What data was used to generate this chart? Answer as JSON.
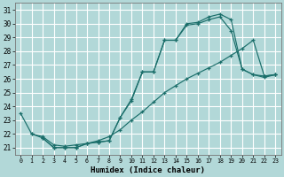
{
  "xlabel": "Humidex (Indice chaleur)",
  "bg_color": "#b2d8d8",
  "grid_color": "#ffffff",
  "line_color": "#1a6e6a",
  "xlim": [
    -0.5,
    23.5
  ],
  "ylim": [
    20.5,
    31.5
  ],
  "xticks": [
    0,
    1,
    2,
    3,
    4,
    5,
    6,
    7,
    8,
    9,
    10,
    11,
    12,
    13,
    14,
    15,
    16,
    17,
    18,
    19,
    20,
    21,
    22,
    23
  ],
  "yticks": [
    21,
    22,
    23,
    24,
    25,
    26,
    27,
    28,
    29,
    30,
    31
  ],
  "s1_x": [
    0,
    1,
    2,
    3,
    4,
    5,
    6,
    7,
    8,
    9,
    10,
    11,
    12,
    13,
    14,
    15,
    16,
    17,
    18,
    19,
    20,
    21,
    22,
    23
  ],
  "s1_y": [
    23.5,
    22.0,
    21.7,
    21.0,
    21.0,
    21.0,
    21.3,
    21.4,
    21.5,
    23.2,
    24.5,
    26.5,
    26.5,
    28.8,
    28.8,
    30.0,
    30.1,
    30.5,
    30.7,
    30.3,
    26.7,
    26.3,
    26.1,
    26.3
  ],
  "s2_x": [
    2,
    3,
    4,
    5,
    6,
    7,
    8,
    9,
    10,
    11,
    12,
    13,
    14,
    15,
    16,
    17,
    18,
    19,
    20,
    21,
    22,
    23
  ],
  "s2_y": [
    21.7,
    21.0,
    21.0,
    21.0,
    21.3,
    21.4,
    21.5,
    23.2,
    24.4,
    26.5,
    26.5,
    28.8,
    28.8,
    29.9,
    30.0,
    30.3,
    30.5,
    29.5,
    26.7,
    26.3,
    26.2,
    26.3
  ],
  "s3_x": [
    1,
    2,
    3,
    4,
    5,
    6,
    7,
    8,
    9,
    10,
    11,
    12,
    13,
    14,
    15,
    16,
    17,
    18,
    19,
    20,
    21,
    22,
    23
  ],
  "s3_y": [
    22.0,
    21.8,
    21.2,
    21.1,
    21.2,
    21.3,
    21.5,
    21.8,
    22.3,
    23.0,
    23.6,
    24.3,
    25.0,
    25.5,
    26.0,
    26.4,
    26.8,
    27.2,
    27.7,
    28.2,
    28.8,
    26.2,
    26.3
  ]
}
